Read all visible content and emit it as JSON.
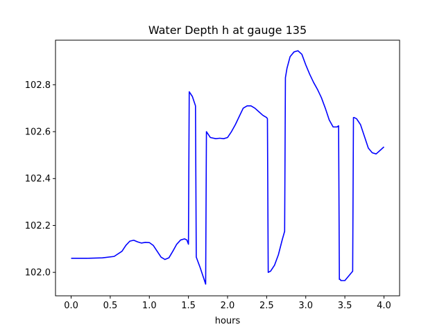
{
  "chart_data": {
    "type": "line",
    "title": "Water Depth h at gauge 135",
    "xlabel": "hours",
    "ylabel": "",
    "xlim": [
      -0.2,
      4.2
    ],
    "ylim": [
      101.9,
      102.99
    ],
    "grid": false,
    "x_ticks": [
      0.0,
      0.5,
      1.0,
      1.5,
      2.0,
      2.5,
      3.0,
      3.5,
      4.0
    ],
    "x_tick_labels": [
      "0.0",
      "0.5",
      "1.0",
      "1.5",
      "2.0",
      "2.5",
      "3.0",
      "3.5",
      "4.0"
    ],
    "y_ticks": [
      102.0,
      102.2,
      102.4,
      102.6,
      102.8
    ],
    "y_tick_labels": [
      "102.0",
      "102.2",
      "102.4",
      "102.6",
      "102.8"
    ],
    "series": [
      {
        "name": "",
        "color": "#0000ff",
        "x": [
          0.0,
          0.2,
          0.4,
          0.55,
          0.65,
          0.7,
          0.75,
          0.8,
          0.85,
          0.9,
          0.95,
          1.0,
          1.05,
          1.1,
          1.15,
          1.2,
          1.25,
          1.3,
          1.35,
          1.4,
          1.45,
          1.48,
          1.5,
          1.51,
          1.55,
          1.59,
          1.6,
          1.65,
          1.7,
          1.72,
          1.73,
          1.75,
          1.78,
          1.85,
          1.9,
          1.95,
          2.0,
          2.05,
          2.1,
          2.15,
          2.2,
          2.25,
          2.3,
          2.35,
          2.4,
          2.45,
          2.5,
          2.51,
          2.52,
          2.55,
          2.6,
          2.65,
          2.7,
          2.73,
          2.74,
          2.76,
          2.8,
          2.85,
          2.9,
          2.95,
          3.0,
          3.05,
          3.1,
          3.15,
          3.2,
          3.25,
          3.3,
          3.35,
          3.4,
          3.42,
          3.43,
          3.44,
          3.45,
          3.5,
          3.55,
          3.6,
          3.61,
          3.62,
          3.65,
          3.7,
          3.75,
          3.8,
          3.85,
          3.9,
          3.95,
          4.0
        ],
        "y": [
          102.06,
          102.06,
          102.062,
          102.068,
          102.09,
          102.115,
          102.133,
          102.137,
          102.13,
          102.125,
          102.128,
          102.127,
          102.115,
          102.09,
          102.065,
          102.055,
          102.062,
          102.09,
          102.12,
          102.138,
          102.143,
          102.138,
          102.12,
          102.77,
          102.75,
          102.71,
          102.065,
          102.02,
          101.97,
          101.95,
          102.6,
          102.59,
          102.575,
          102.57,
          102.572,
          102.57,
          102.575,
          102.6,
          102.63,
          102.665,
          102.7,
          102.71,
          102.71,
          102.7,
          102.685,
          102.67,
          102.66,
          102.655,
          102.0,
          102.005,
          102.03,
          102.075,
          102.14,
          102.175,
          102.83,
          102.87,
          102.92,
          102.94,
          102.945,
          102.93,
          102.885,
          102.845,
          102.81,
          102.78,
          102.745,
          102.7,
          102.65,
          102.62,
          102.62,
          102.625,
          101.97,
          101.97,
          101.965,
          101.965,
          101.985,
          102.005,
          102.66,
          102.66,
          102.655,
          102.63,
          102.58,
          102.53,
          102.51,
          102.505,
          102.52,
          102.535
        ]
      }
    ]
  }
}
